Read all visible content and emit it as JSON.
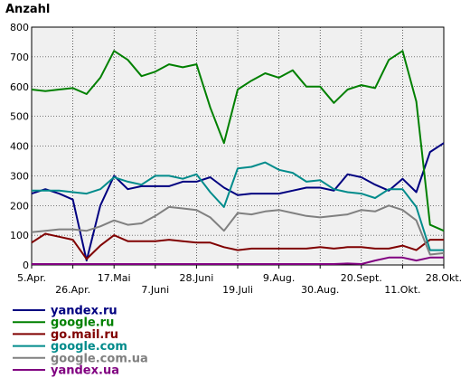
{
  "chart_data": {
    "type": "line",
    "ylabel": "Anzahl",
    "ylim": [
      0,
      800
    ],
    "yticks": [
      0,
      100,
      200,
      300,
      400,
      500,
      600,
      700,
      800
    ],
    "grid": true,
    "legend_position": "bottom-left",
    "x_ticks": [
      {
        "label": "5.Apr.",
        "index": 0
      },
      {
        "label": "26.Apr.",
        "index": 3
      },
      {
        "label": "17.Mai",
        "index": 6
      },
      {
        "label": "7.Juni",
        "index": 9
      },
      {
        "label": "28.Juni",
        "index": 12
      },
      {
        "label": "19.Juli",
        "index": 15
      },
      {
        "label": "9.Aug.",
        "index": 18
      },
      {
        "label": "30.Aug.",
        "index": 21
      },
      {
        "label": "20.Sept.",
        "index": 24
      },
      {
        "label": "11.Okt.",
        "index": 27
      },
      {
        "label": "28.Okt.",
        "index": 30
      }
    ],
    "x_count": 31,
    "series": [
      {
        "name": "yandex.ru",
        "color": "#000080",
        "values": [
          240,
          255,
          240,
          220,
          15,
          200,
          300,
          255,
          265,
          265,
          265,
          280,
          280,
          295,
          260,
          235,
          240,
          240,
          240,
          250,
          260,
          260,
          250,
          305,
          295,
          270,
          250,
          290,
          245,
          380,
          410
        ]
      },
      {
        "name": "google.ru",
        "color": "#008000",
        "values": [
          590,
          585,
          590,
          595,
          575,
          630,
          720,
          690,
          635,
          650,
          675,
          665,
          675,
          530,
          410,
          590,
          620,
          645,
          630,
          655,
          600,
          600,
          545,
          590,
          605,
          595,
          690,
          720,
          550,
          135,
          115
        ]
      },
      {
        "name": "go.mail.ru",
        "color": "#800000",
        "values": [
          75,
          105,
          95,
          85,
          20,
          65,
          100,
          80,
          80,
          80,
          85,
          80,
          75,
          75,
          60,
          50,
          55,
          55,
          55,
          55,
          55,
          60,
          55,
          60,
          60,
          55,
          55,
          65,
          50,
          85,
          85
        ]
      },
      {
        "name": "google.com",
        "color": "#008b8b",
        "values": [
          250,
          250,
          250,
          245,
          240,
          255,
          295,
          280,
          270,
          300,
          300,
          290,
          305,
          245,
          195,
          325,
          330,
          345,
          320,
          310,
          280,
          285,
          255,
          245,
          240,
          225,
          255,
          255,
          195,
          50,
          50
        ]
      },
      {
        "name": "google.com.ua",
        "color": "#808080",
        "values": [
          110,
          115,
          120,
          120,
          115,
          130,
          150,
          135,
          140,
          165,
          195,
          190,
          185,
          160,
          115,
          175,
          170,
          180,
          185,
          175,
          165,
          160,
          165,
          170,
          185,
          180,
          200,
          185,
          150,
          35,
          40
        ]
      },
      {
        "name": "yandex.ua",
        "color": "#800080",
        "values": [
          3,
          3,
          3,
          3,
          3,
          3,
          3,
          3,
          3,
          3,
          3,
          3,
          3,
          3,
          3,
          3,
          3,
          3,
          3,
          3,
          3,
          3,
          3,
          5,
          3,
          15,
          25,
          25,
          15,
          25,
          25
        ]
      }
    ]
  }
}
